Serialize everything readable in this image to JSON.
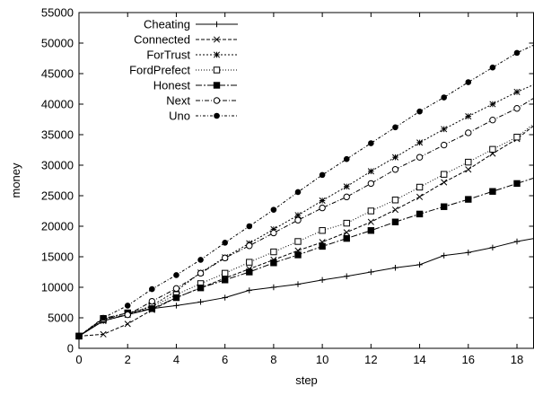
{
  "chart_data": {
    "type": "line",
    "title": "",
    "xlabel": "step",
    "ylabel": "money",
    "xlim": [
      0,
      18.7
    ],
    "ylim": [
      0,
      55000
    ],
    "xticks": [
      0,
      2,
      4,
      6,
      8,
      10,
      12,
      14,
      16,
      18
    ],
    "xtick_labels": [
      "0",
      "2",
      "4",
      "6",
      "8",
      "10",
      "12",
      "14",
      "16",
      "18"
    ],
    "yticks": [
      0,
      5000,
      10000,
      15000,
      20000,
      25000,
      30000,
      35000,
      40000,
      45000,
      50000,
      55000
    ],
    "ytick_labels": [
      "0",
      "5000",
      "10000",
      "15000",
      "20000",
      "25000",
      "30000",
      "35000",
      "40000",
      "45000",
      "50000",
      "55000"
    ],
    "grid": false,
    "legend_position": "top-left",
    "x": [
      0,
      1,
      2,
      3,
      4,
      5,
      6,
      7,
      8,
      9,
      10,
      11,
      12,
      13,
      14,
      15,
      16,
      17,
      18,
      18.7
    ],
    "series": [
      {
        "name": "Cheating",
        "marker": "plus",
        "dash": "",
        "color": "#000000",
        "values": [
          2000,
          4500,
          5500,
          6500,
          7000,
          7600,
          8300,
          9500,
          10000,
          10500,
          11200,
          11800,
          12500,
          13200,
          13700,
          15200,
          15700,
          16500,
          17500,
          18000
        ]
      },
      {
        "name": "Connected",
        "marker": "x",
        "dash": "4,2",
        "color": "#000000",
        "values": [
          2000,
          2300,
          4000,
          6300,
          8300,
          9900,
          11500,
          13000,
          14500,
          16000,
          17400,
          19000,
          20700,
          22700,
          24800,
          27200,
          29300,
          31900,
          34300,
          36500
        ]
      },
      {
        "name": "ForTrust",
        "marker": "asterisk",
        "dash": "2,2",
        "color": "#000000",
        "values": [
          2000,
          4500,
          5500,
          7000,
          9400,
          12400,
          14900,
          17200,
          19500,
          21800,
          24200,
          26500,
          29000,
          31300,
          33700,
          35900,
          38000,
          40000,
          42000,
          43200
        ]
      },
      {
        "name": "FordPrefect",
        "marker": "square",
        "dash": "1,2",
        "color": "#000000",
        "values": [
          2000,
          4700,
          5800,
          6800,
          8800,
          10600,
          12300,
          14100,
          15800,
          17500,
          19300,
          20500,
          22500,
          24300,
          26400,
          28500,
          30500,
          32600,
          34600,
          36800
        ]
      },
      {
        "name": "Honest",
        "marker": "filled-square",
        "dash": "7,2,2,2",
        "color": "#000000",
        "values": [
          2000,
          4900,
          5800,
          6500,
          8300,
          9900,
          11200,
          12500,
          14000,
          15300,
          16700,
          18000,
          19300,
          20700,
          22000,
          23200,
          24400,
          25700,
          27000,
          27900
        ]
      },
      {
        "name": "Next",
        "marker": "circle",
        "dash": "5,2,1,2",
        "color": "#000000",
        "values": [
          2000,
          4800,
          5500,
          7700,
          9800,
          12300,
          14800,
          16800,
          18900,
          21000,
          23000,
          24800,
          27000,
          29300,
          31300,
          33300,
          35300,
          37400,
          39300,
          41000
        ]
      },
      {
        "name": "Uno",
        "marker": "filled-circle",
        "dash": "3,2,1,2",
        "color": "#000000",
        "values": [
          2000,
          5000,
          7000,
          9700,
          12000,
          14500,
          17300,
          20000,
          22700,
          25600,
          28400,
          31000,
          33600,
          36200,
          38800,
          41100,
          43600,
          46000,
          48400,
          49700
        ]
      }
    ]
  }
}
